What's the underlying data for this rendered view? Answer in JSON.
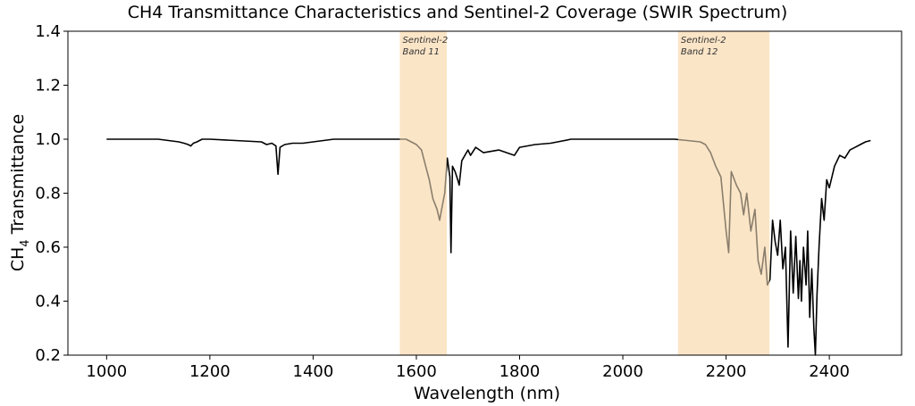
{
  "chart_data": {
    "type": "line",
    "title": "CH4 Transmittance Characteristics and Sentinel-2 Coverage (SWIR Spectrum)",
    "xlabel": "Wavelength (nm)",
    "ylabel_main": "CH",
    "ylabel_sub": "4",
    "ylabel_rest": " Transmittance",
    "xlim": [
      925,
      2540
    ],
    "ylim": [
      0.2,
      1.4
    ],
    "xticks": [
      1000,
      1200,
      1400,
      1600,
      1800,
      2000,
      2200,
      2400
    ],
    "yticks": [
      0.2,
      0.4,
      0.6,
      0.8,
      1.0,
      1.2,
      1.4
    ],
    "xtick_labels": [
      "1000",
      "1200",
      "1400",
      "1600",
      "1800",
      "2000",
      "2200",
      "2400"
    ],
    "ytick_labels": [
      "0.2",
      "0.4",
      "0.6",
      "0.8",
      "1.0",
      "1.2",
      "1.4"
    ],
    "grid": false,
    "line_color": "#000000",
    "bands": [
      {
        "name_line1": "Sentinel-2",
        "name_line2": "Band 11",
        "x_range": [
          1568,
          1659
        ],
        "color": "#fbe5c7"
      },
      {
        "name_line1": "Sentinel-2",
        "name_line2": "Band 12",
        "x_range": [
          2107,
          2284
        ],
        "color": "#fbe5c7"
      }
    ],
    "series": [
      {
        "x": [
          1000,
          1100,
          1140,
          1150,
          1158,
          1163,
          1168,
          1175,
          1185,
          1200,
          1300,
          1310,
          1320,
          1328,
          1332,
          1336,
          1345,
          1360,
          1380,
          1400,
          1440,
          1500,
          1580,
          1600,
          1610,
          1618,
          1625,
          1632,
          1640,
          1645,
          1650,
          1655,
          1660,
          1665,
          1667,
          1670,
          1675,
          1680,
          1683,
          1688,
          1700,
          1705,
          1715,
          1730,
          1760,
          1790,
          1800,
          1830,
          1860,
          1900,
          2000,
          2100,
          2150,
          2160,
          2170,
          2180,
          2190,
          2200,
          2205,
          2210,
          2220,
          2228,
          2234,
          2240,
          2248,
          2256,
          2262,
          2268,
          2275,
          2280,
          2285,
          2290,
          2295,
          2300,
          2305,
          2310,
          2315,
          2320,
          2325,
          2330,
          2335,
          2340,
          2343,
          2346,
          2350,
          2355,
          2358,
          2362,
          2366,
          2370,
          2373,
          2376,
          2380,
          2385,
          2390,
          2395,
          2400,
          2410,
          2420,
          2430,
          2440,
          2450,
          2460,
          2470,
          2480
        ],
        "y": [
          1.0,
          1.0,
          0.99,
          0.985,
          0.98,
          0.975,
          0.985,
          0.99,
          1.0,
          1.0,
          0.99,
          0.98,
          0.985,
          0.975,
          0.87,
          0.97,
          0.98,
          0.985,
          0.985,
          0.99,
          1.0,
          1.0,
          1.0,
          0.98,
          0.96,
          0.9,
          0.85,
          0.78,
          0.74,
          0.7,
          0.75,
          0.8,
          0.93,
          0.86,
          0.58,
          0.9,
          0.88,
          0.85,
          0.83,
          0.92,
          0.96,
          0.94,
          0.97,
          0.95,
          0.96,
          0.94,
          0.97,
          0.98,
          0.985,
          1.0,
          1.0,
          1.0,
          0.99,
          0.98,
          0.95,
          0.9,
          0.86,
          0.66,
          0.58,
          0.88,
          0.83,
          0.8,
          0.72,
          0.8,
          0.66,
          0.74,
          0.55,
          0.5,
          0.6,
          0.46,
          0.48,
          0.7,
          0.62,
          0.57,
          0.7,
          0.52,
          0.6,
          0.23,
          0.66,
          0.43,
          0.64,
          0.41,
          0.55,
          0.4,
          0.6,
          0.46,
          0.66,
          0.34,
          0.52,
          0.3,
          0.2,
          0.42,
          0.6,
          0.78,
          0.7,
          0.85,
          0.82,
          0.9,
          0.94,
          0.93,
          0.96,
          0.97,
          0.98,
          0.99,
          0.995
        ]
      }
    ]
  }
}
